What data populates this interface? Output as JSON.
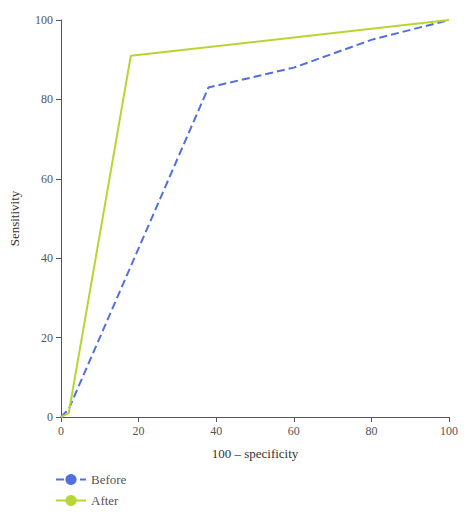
{
  "chart_data": {
    "type": "line",
    "xlabel": "100 – specificity",
    "ylabel": "Sensitivity",
    "xlim": [
      0,
      100
    ],
    "ylim": [
      0,
      100
    ],
    "xticks": [
      0,
      20,
      40,
      60,
      80,
      100
    ],
    "yticks": [
      0,
      20,
      40,
      60,
      80,
      100
    ],
    "grid": false,
    "legend": "bottom",
    "series": [
      {
        "name": "Before",
        "x": [
          0,
          2,
          38,
          60,
          80,
          100
        ],
        "values": [
          0,
          2,
          83,
          88,
          95,
          100
        ],
        "line_style": "dashed"
      },
      {
        "name": "After",
        "x": [
          0,
          2,
          18,
          100
        ],
        "values": [
          0,
          1,
          91,
          100
        ],
        "line_style": "solid"
      }
    ]
  }
}
